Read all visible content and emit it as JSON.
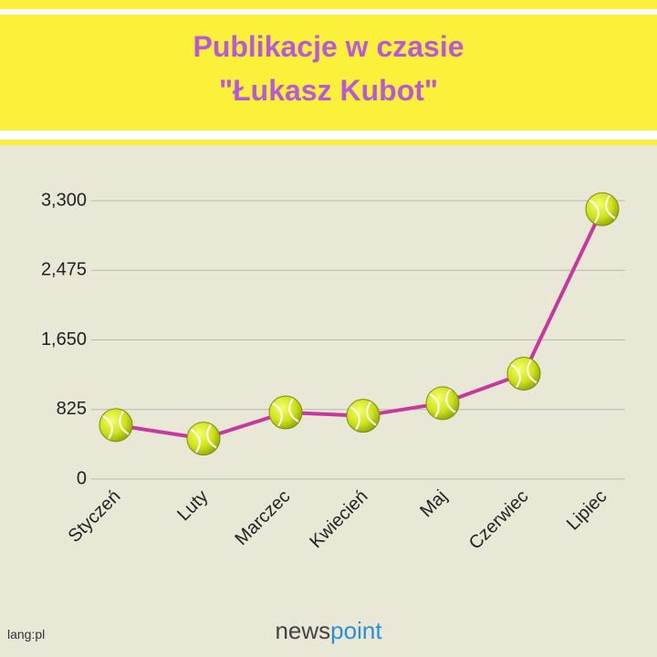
{
  "chart_data": {
    "type": "line",
    "title": "Publikacje w czasie",
    "subtitle": "\"Łukasz Kubot\"",
    "categories": [
      "Styczeń",
      "Luty",
      "Marczec",
      "Kwiecień",
      "Maj",
      "Czerwiec",
      "Lipiec"
    ],
    "values": [
      640,
      480,
      790,
      750,
      900,
      1250,
      3200
    ],
    "color": "#c8379e",
    "ylim": [
      0,
      3300
    ],
    "yticks": [
      0,
      825,
      {
        "value": 1650,
        "label": "1,650"
      },
      {
        "value": 2475,
        "label": "2,475"
      },
      {
        "value": 3300,
        "label": "3,300"
      }
    ],
    "grid": true
  },
  "footer": {
    "credit": "lang:pl",
    "logo_prefix": "news",
    "logo_suffix": "point"
  }
}
